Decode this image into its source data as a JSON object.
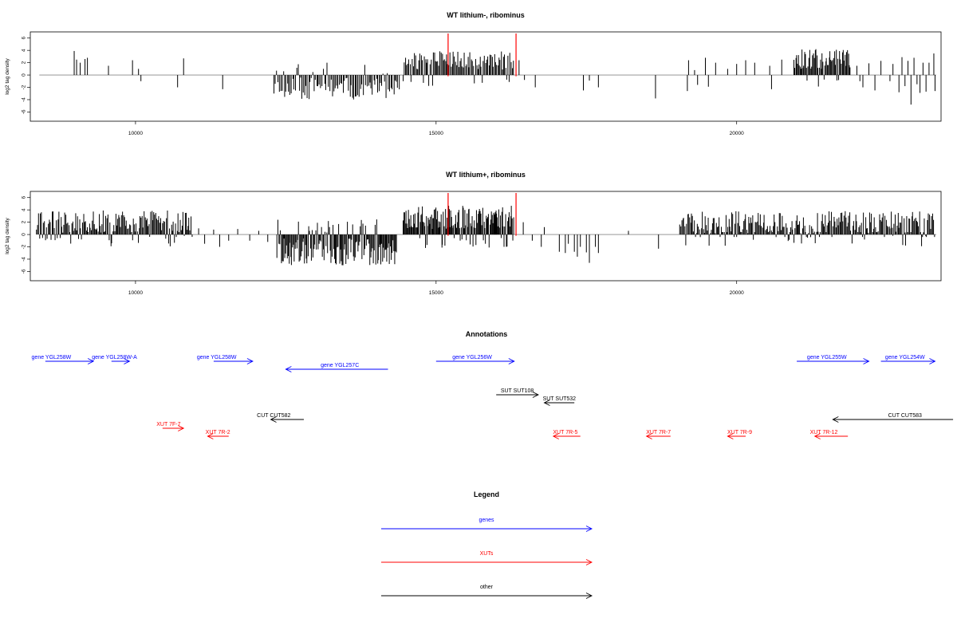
{
  "chart_data": [
    {
      "type": "bar",
      "title": "WT lithium-, ribominus",
      "xlabel": "",
      "ylabel": "log2 tag density",
      "xlim": [
        8250,
        23400
      ],
      "ylim": [
        -7.5,
        7
      ],
      "xticks": [
        10000,
        15000,
        20000
      ],
      "yticks": [
        -6,
        -4,
        -2,
        0,
        2,
        4,
        6
      ],
      "marker_lines": [
        15200,
        16330
      ],
      "grid": false,
      "dense": [
        {
          "from": 12300,
          "to": 14400,
          "center": -2.2,
          "spread": 1.8,
          "n": 95,
          "seed": 11
        },
        {
          "from": 14450,
          "to": 16300,
          "center": 2.4,
          "spread": 1.5,
          "n": 100,
          "seed": 12
        },
        {
          "from": 20950,
          "to": 21900,
          "center": 2.6,
          "spread": 1.6,
          "n": 65,
          "seed": 13
        }
      ],
      "sparse": [
        [
          8980,
          3.9
        ],
        [
          9020,
          2.5
        ],
        [
          9080,
          2.0
        ],
        [
          9160,
          2.6
        ],
        [
          9200,
          2.8
        ],
        [
          9550,
          1.5
        ],
        [
          9950,
          2.4
        ],
        [
          10050,
          1.0
        ],
        [
          10090,
          -1.0
        ],
        [
          10700,
          -2.0
        ],
        [
          10800,
          2.7
        ],
        [
          11450,
          -2.3
        ],
        [
          16380,
          2.4
        ],
        [
          16470,
          -0.8
        ],
        [
          16650,
          -2.0
        ],
        [
          17450,
          -2.5
        ],
        [
          17550,
          -0.9
        ],
        [
          17700,
          -2.0
        ],
        [
          18650,
          -3.8
        ],
        [
          19180,
          -2.6
        ],
        [
          19200,
          2.4
        ],
        [
          19300,
          0.8
        ],
        [
          19350,
          -1.6
        ],
        [
          19480,
          2.8
        ],
        [
          19530,
          -1.9
        ],
        [
          19650,
          2.0
        ],
        [
          19850,
          1.0
        ],
        [
          20000,
          1.8
        ],
        [
          20150,
          2.4
        ],
        [
          20300,
          2.0
        ],
        [
          20550,
          1.5
        ],
        [
          20580,
          -2.3
        ],
        [
          20750,
          2.5
        ],
        [
          22000,
          1.5
        ],
        [
          22050,
          -1.0
        ],
        [
          22100,
          -2.0
        ],
        [
          22200,
          1.9
        ],
        [
          22300,
          -2.5
        ],
        [
          22400,
          2.3
        ],
        [
          22550,
          -1.0
        ],
        [
          22600,
          1.8
        ],
        [
          22700,
          -2.8
        ],
        [
          22750,
          2.9
        ],
        [
          22800,
          -1.8
        ],
        [
          22850,
          2.3
        ],
        [
          22900,
          -4.8
        ],
        [
          22950,
          2.8
        ],
        [
          23000,
          -1.5
        ],
        [
          23050,
          -2.9
        ],
        [
          23100,
          2.0
        ],
        [
          23150,
          -2.7
        ],
        [
          23200,
          2.0
        ],
        [
          23280,
          3.5
        ],
        [
          23300,
          -2.6
        ]
      ]
    },
    {
      "type": "bar",
      "title": "WT lithium+, ribominus",
      "xlabel": "",
      "ylabel": "log2 tag density",
      "xlim": [
        8250,
        23400
      ],
      "ylim": [
        -7.5,
        7
      ],
      "xticks": [
        10000,
        15000,
        20000
      ],
      "yticks": [
        -6,
        -4,
        -2,
        0,
        2,
        4,
        6
      ],
      "marker_lines": [
        15200,
        16330
      ],
      "grid": false,
      "dense": [
        {
          "from": 8350,
          "to": 10950,
          "center": 2.0,
          "spread": 1.9,
          "n": 160,
          "seed": 21
        },
        {
          "from": 12350,
          "to": 14350,
          "center": -2.8,
          "spread": 2.2,
          "n": 140,
          "seed": 22
        },
        {
          "from": 14450,
          "to": 16300,
          "center": 2.8,
          "spread": 1.9,
          "n": 150,
          "seed": 23
        },
        {
          "from": 19050,
          "to": 23300,
          "center": 1.8,
          "spread": 2.0,
          "n": 260,
          "seed": 24
        }
      ],
      "sparse": [
        [
          11050,
          1.0
        ],
        [
          11150,
          -1.5
        ],
        [
          11300,
          0.8
        ],
        [
          11400,
          -2.0
        ],
        [
          11550,
          -1.0
        ],
        [
          11700,
          0.9
        ],
        [
          11900,
          -1.0
        ],
        [
          12050,
          0.6
        ],
        [
          12200,
          -1.2
        ],
        [
          16450,
          2.0
        ],
        [
          16600,
          -1.0
        ],
        [
          16750,
          -2.0
        ],
        [
          16800,
          1.2
        ],
        [
          17050,
          -2.8
        ],
        [
          17150,
          -3.0
        ],
        [
          17200,
          -1.5
        ],
        [
          17300,
          -2.8
        ],
        [
          17350,
          -3.6
        ],
        [
          17400,
          -2.0
        ],
        [
          17500,
          -2.9
        ],
        [
          17550,
          -4.6
        ],
        [
          17650,
          -2.0
        ],
        [
          17700,
          -3.0
        ],
        [
          18200,
          0.6
        ],
        [
          18700,
          -2.3
        ]
      ]
    }
  ],
  "annotations": {
    "title": "Annotations",
    "items": [
      {
        "label": "gene YGL258W",
        "x_from": 8500,
        "x_to": 9300,
        "row": 0,
        "dir": "right",
        "color": "#0000ff",
        "label_x": 8600
      },
      {
        "label": "gene YGL258W-A",
        "x_from": 9600,
        "x_to": 9900,
        "row": 0,
        "dir": "right",
        "color": "#0000ff",
        "label_x": 9650
      },
      {
        "label": "gene YGL258W",
        "x_from": 11300,
        "x_to": 11950,
        "row": 0,
        "dir": "right",
        "color": "#0000ff",
        "label_x": 11350
      },
      {
        "label": "gene YGL257C",
        "x_from": 12500,
        "x_to": 14200,
        "row": 1,
        "dir": "left",
        "color": "#0000ff",
        "label_x": 13400
      },
      {
        "label": "gene YGL256W",
        "x_from": 15000,
        "x_to": 16300,
        "row": 0,
        "dir": "right",
        "color": "#0000ff",
        "label_x": 15600
      },
      {
        "label": "gene YGL255W",
        "x_from": 21000,
        "x_to": 22200,
        "row": 0,
        "dir": "right",
        "color": "#0000ff",
        "label_x": 21500
      },
      {
        "label": "gene YGL254W",
        "x_from": 22400,
        "x_to": 23300,
        "row": 0,
        "dir": "right",
        "color": "#0000ff",
        "label_x": 22800
      },
      {
        "label": "SUT SUT108",
        "x_from": 16000,
        "x_to": 16700,
        "row": 2,
        "dir": "right",
        "color": "#000000",
        "label_x": 16350
      },
      {
        "label": "SUT SUT532",
        "x_from": 16800,
        "x_to": 17300,
        "row": 3,
        "dir": "left",
        "color": "#000000",
        "label_x": 17050
      },
      {
        "label": "CUT CUT582",
        "x_from": 12250,
        "x_to": 12800,
        "row": 4,
        "dir": "left",
        "color": "#000000",
        "label_x": 12300
      },
      {
        "label": "CUT CUT583",
        "x_from": 21600,
        "x_to": 23600,
        "row": 4,
        "dir": "left",
        "color": "#000000",
        "label_x": 22800
      },
      {
        "label": "XUT 7F-7",
        "x_from": 10450,
        "x_to": 10800,
        "row": 5,
        "dir": "right",
        "color": "#ff0000",
        "label_x": 10550
      },
      {
        "label": "XUT 7R-2",
        "x_from": 11200,
        "x_to": 11550,
        "row": 6,
        "dir": "left",
        "color": "#ff0000",
        "label_x": 11370
      },
      {
        "label": "XUT 7R-5",
        "x_from": 16950,
        "x_to": 17400,
        "row": 6,
        "dir": "left",
        "color": "#ff0000",
        "label_x": 17150
      },
      {
        "label": "XUT 7R-7",
        "x_from": 18500,
        "x_to": 18900,
        "row": 6,
        "dir": "left",
        "color": "#ff0000",
        "label_x": 18700
      },
      {
        "label": "XUT 7R-9",
        "x_from": 19850,
        "x_to": 20150,
        "row": 6,
        "dir": "left",
        "color": "#ff0000",
        "label_x": 20050
      },
      {
        "label": "XUT 7R-12",
        "x_from": 21300,
        "x_to": 21850,
        "row": 6,
        "dir": "left",
        "color": "#ff0000",
        "label_x": 21450
      }
    ]
  },
  "legend": {
    "title": "Legend",
    "items": [
      {
        "label": "genes",
        "color": "#0000ff"
      },
      {
        "label": "XUTs",
        "color": "#ff0000"
      },
      {
        "label": "other",
        "color": "#000000"
      }
    ]
  }
}
